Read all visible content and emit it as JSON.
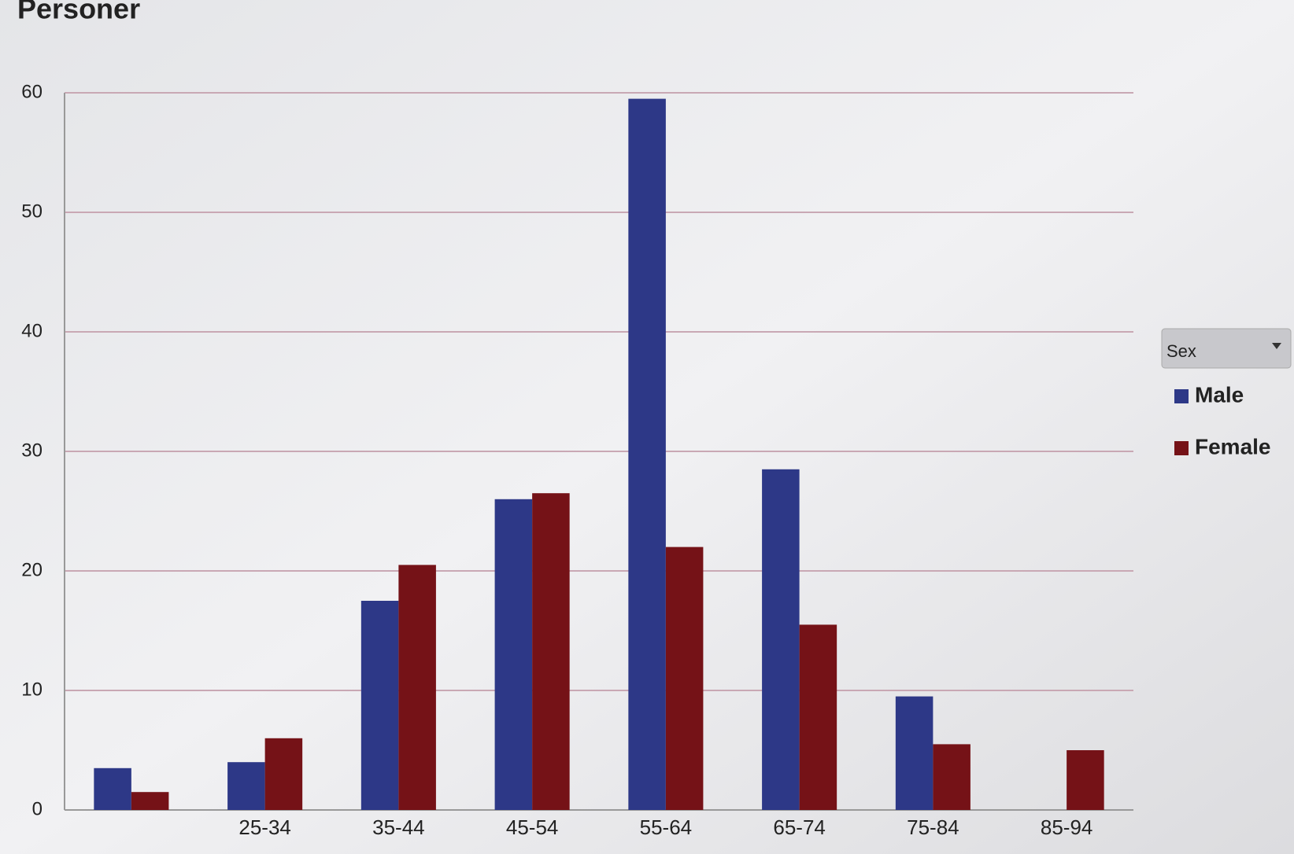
{
  "chart_data": {
    "type": "bar",
    "title": "Personer",
    "categories": [
      null,
      "25-34",
      "35-44",
      "45-54",
      "55-64",
      "65-74",
      "75-84",
      "85-94"
    ],
    "series": [
      {
        "name": "Male",
        "color": "#2d3887",
        "values": [
          3.5,
          4,
          17.5,
          26,
          59.5,
          28.5,
          9.5,
          0
        ]
      },
      {
        "name": "Female",
        "color": "#751217",
        "values": [
          1.5,
          6,
          20.5,
          26.5,
          22,
          15.5,
          5.5,
          5
        ]
      }
    ],
    "ylim": [
      0,
      60
    ],
    "yticks": [
      0,
      10,
      20,
      30,
      40,
      50,
      60
    ],
    "grid": true,
    "legend_title": "Sex",
    "legend_position": "right"
  }
}
